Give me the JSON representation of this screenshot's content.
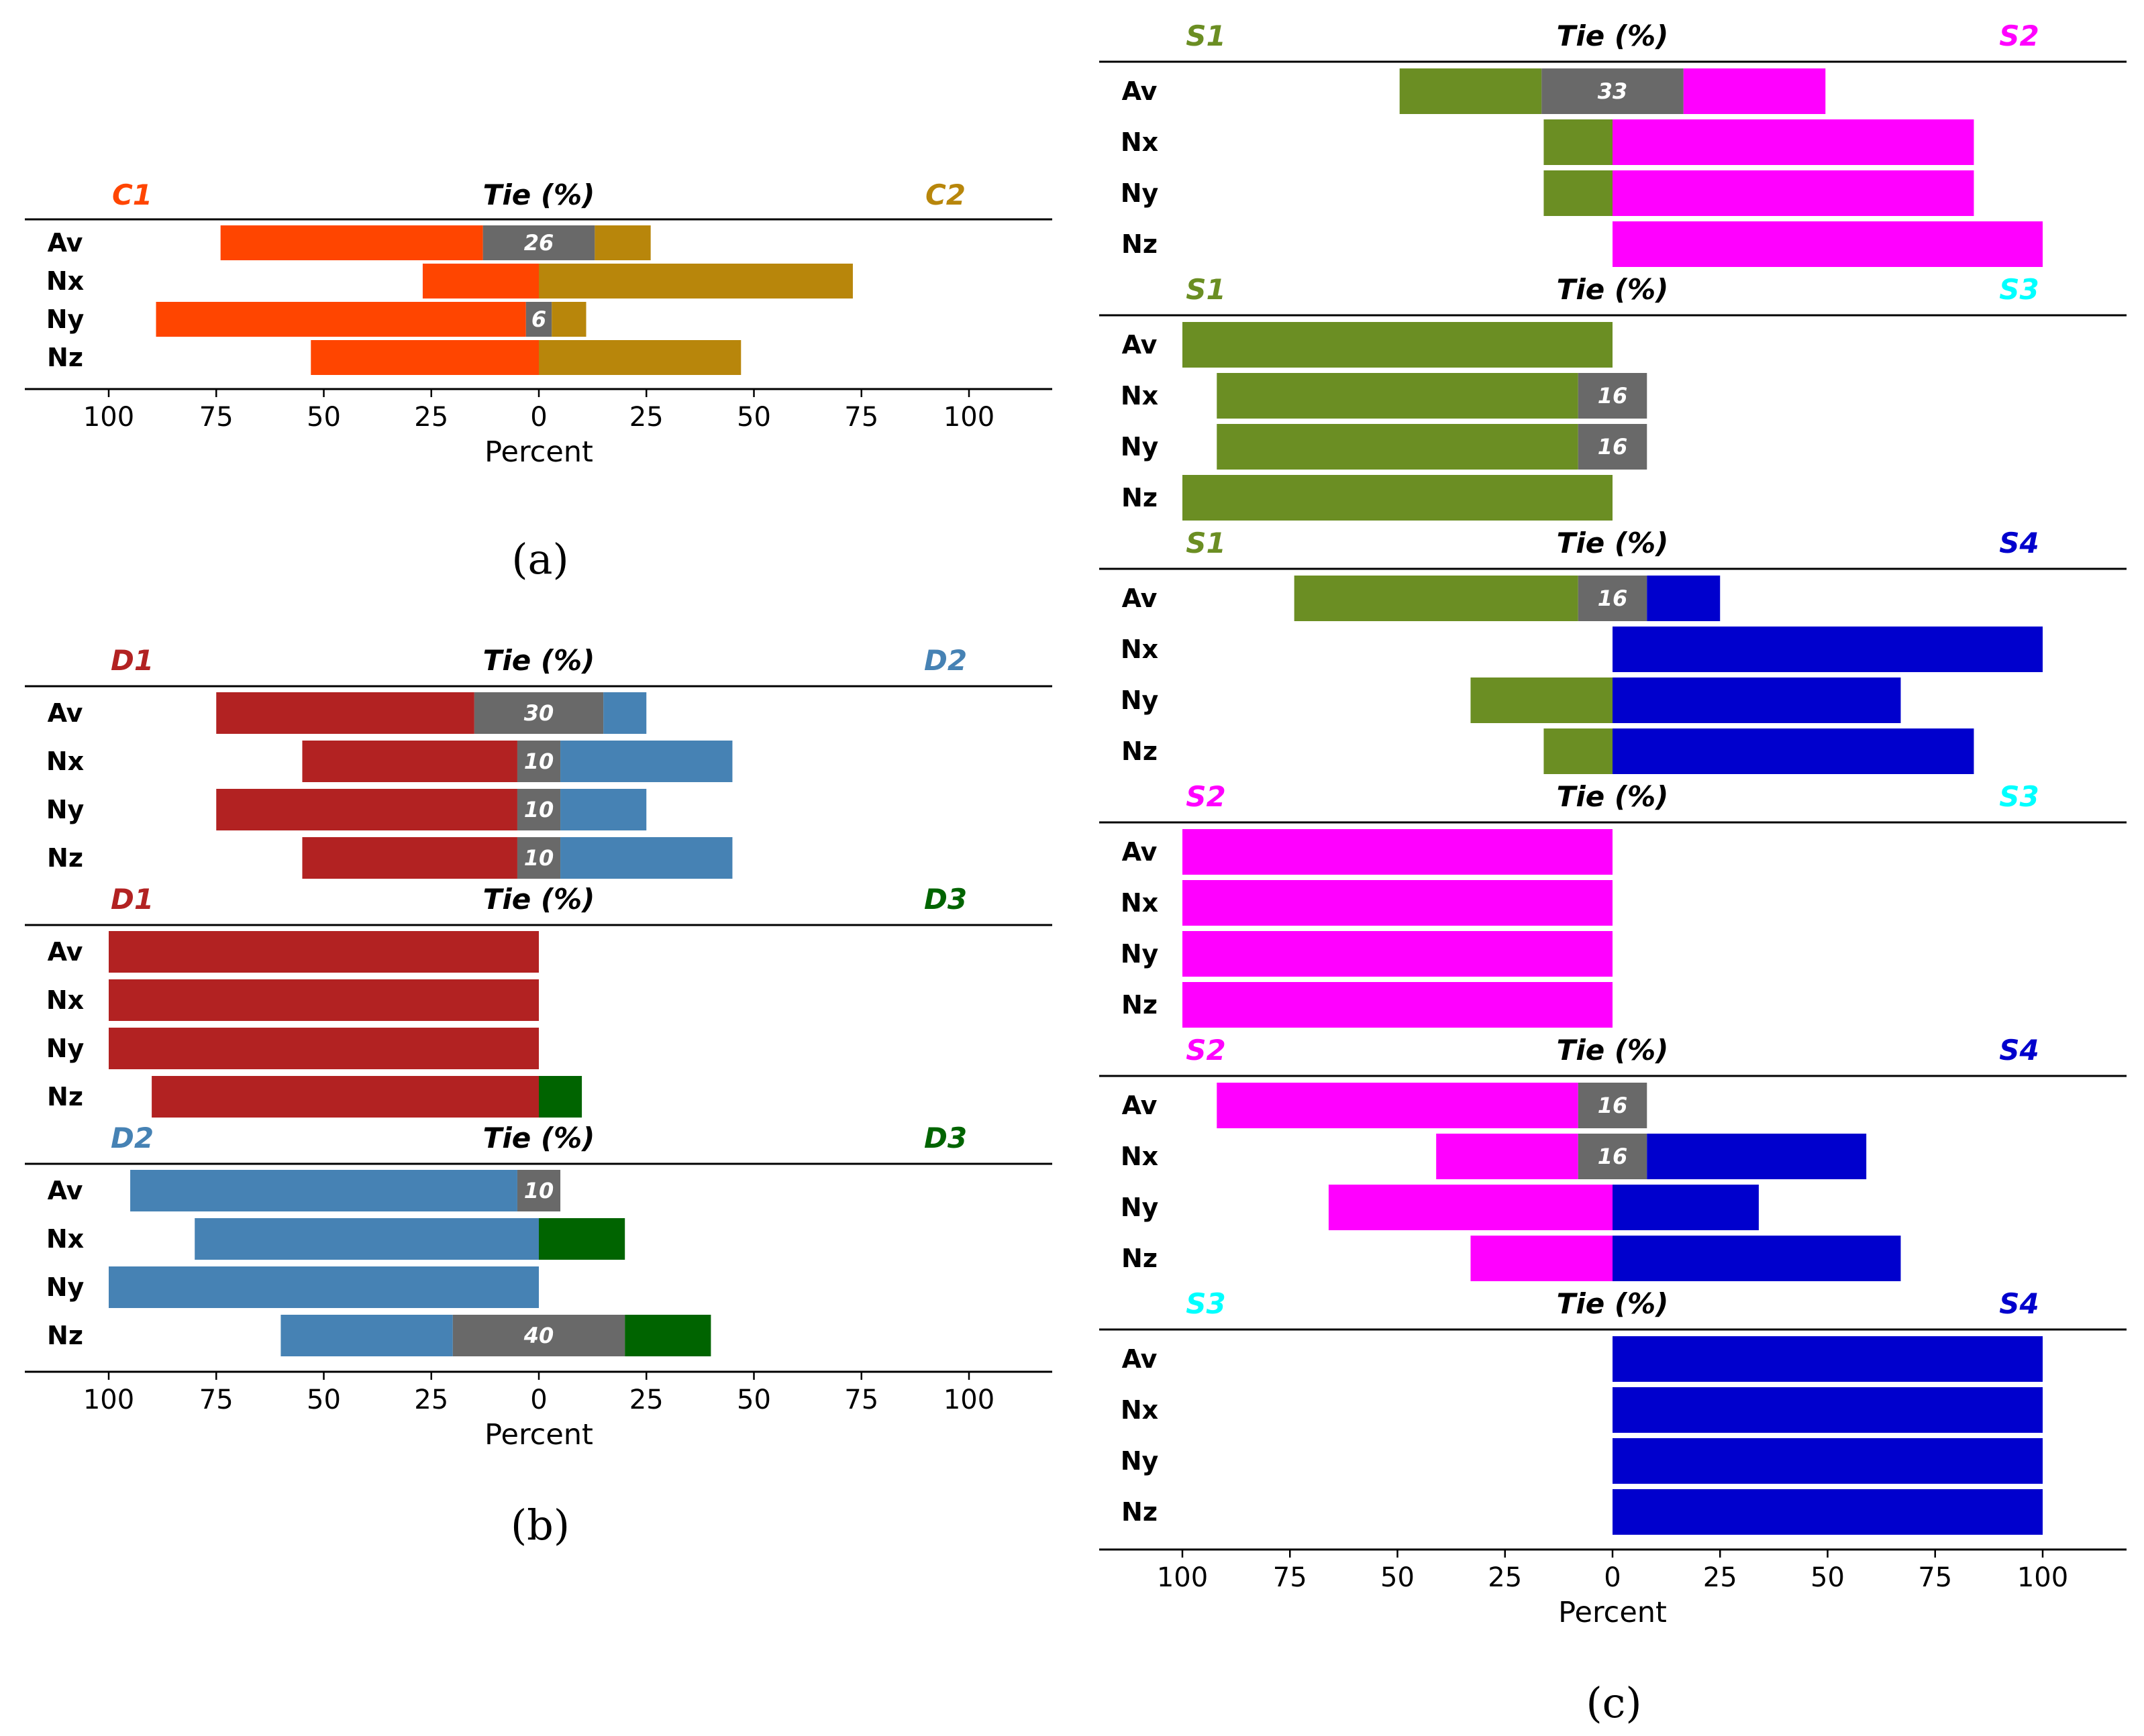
{
  "figure": {
    "panel_letters": [
      "(a)",
      "(b)",
      "(c)"
    ]
  },
  "chart_data": [
    {
      "type": "bar",
      "panel": "(a)",
      "orientation": "horizontal-diverging",
      "xlabel": "Percent",
      "xlim": [
        -120,
        120
      ],
      "xticks": [
        -100,
        -75,
        -50,
        -25,
        0,
        25,
        50,
        75,
        100
      ],
      "xtick_labels": [
        "100",
        "75",
        "50",
        "25",
        "0",
        "25",
        "50",
        "75",
        "100"
      ],
      "rows": [
        "Av",
        "Nx",
        "Ny",
        "Nz"
      ],
      "blocks": [
        {
          "left": {
            "name": "C1",
            "color": "#ff4500"
          },
          "tie": {
            "name": "Tie (%)",
            "color": "#696969"
          },
          "right": {
            "name": "C2",
            "color": "#b8860b"
          },
          "bars": [
            {
              "row": "Av",
              "left": 61,
              "tie": 26,
              "right": 13
            },
            {
              "row": "Nx",
              "left": 27,
              "tie": 0,
              "right": 73
            },
            {
              "row": "Ny",
              "left": 86,
              "tie": 6,
              "right": 8
            },
            {
              "row": "Nz",
              "left": 53,
              "tie": 0,
              "right": 47
            }
          ]
        }
      ]
    },
    {
      "type": "bar",
      "panel": "(b)",
      "orientation": "horizontal-diverging",
      "xlabel": "Percent",
      "xlim": [
        -120,
        120
      ],
      "xticks": [
        -100,
        -75,
        -50,
        -25,
        0,
        25,
        50,
        75,
        100
      ],
      "xtick_labels": [
        "100",
        "75",
        "50",
        "25",
        "0",
        "25",
        "50",
        "75",
        "100"
      ],
      "rows": [
        "Av",
        "Nx",
        "Ny",
        "Nz"
      ],
      "blocks": [
        {
          "left": {
            "name": "D1",
            "color": "#b22222"
          },
          "tie": {
            "name": "Tie (%)",
            "color": "#696969"
          },
          "right": {
            "name": "D2",
            "color": "#4682b4"
          },
          "bars": [
            {
              "row": "Av",
              "left": 60,
              "tie": 30,
              "right": 10
            },
            {
              "row": "Nx",
              "left": 50,
              "tie": 10,
              "right": 40
            },
            {
              "row": "Ny",
              "left": 70,
              "tie": 10,
              "right": 20
            },
            {
              "row": "Nz",
              "left": 50,
              "tie": 10,
              "right": 40
            }
          ]
        },
        {
          "left": {
            "name": "D1",
            "color": "#b22222"
          },
          "tie": {
            "name": "Tie (%)",
            "color": "#696969"
          },
          "right": {
            "name": "D3",
            "color": "#006400"
          },
          "bars": [
            {
              "row": "Av",
              "left": 100,
              "tie": 0,
              "right": 0
            },
            {
              "row": "Nx",
              "left": 100,
              "tie": 0,
              "right": 0
            },
            {
              "row": "Ny",
              "left": 100,
              "tie": 0,
              "right": 0
            },
            {
              "row": "Nz",
              "left": 90,
              "tie": 0,
              "right": 10
            }
          ]
        },
        {
          "left": {
            "name": "D2",
            "color": "#4682b4"
          },
          "tie": {
            "name": "Tie (%)",
            "color": "#696969"
          },
          "right": {
            "name": "D3",
            "color": "#006400"
          },
          "bars": [
            {
              "row": "Av",
              "left": 90,
              "tie": 10,
              "right": 0
            },
            {
              "row": "Nx",
              "left": 80,
              "tie": 0,
              "right": 20
            },
            {
              "row": "Ny",
              "left": 100,
              "tie": 0,
              "right": 0
            },
            {
              "row": "Nz",
              "left": 40,
              "tie": 40,
              "right": 20
            }
          ]
        }
      ]
    },
    {
      "type": "bar",
      "panel": "(c)",
      "orientation": "horizontal-diverging",
      "xlabel": "Percent",
      "xlim": [
        -120,
        120
      ],
      "xticks": [
        -100,
        -75,
        -50,
        -25,
        0,
        25,
        50,
        75,
        100
      ],
      "xtick_labels": [
        "100",
        "75",
        "50",
        "25",
        "0",
        "25",
        "50",
        "75",
        "100"
      ],
      "rows": [
        "Av",
        "Nx",
        "Ny",
        "Nz"
      ],
      "blocks": [
        {
          "left": {
            "name": "S1",
            "color": "#6b8e23"
          },
          "tie": {
            "name": "Tie (%)",
            "color": "#696969"
          },
          "right": {
            "name": "S2",
            "color": "#ff00ff"
          },
          "bars": [
            {
              "row": "Av",
              "left": 33,
              "tie": 33,
              "right": 33
            },
            {
              "row": "Nx",
              "left": 16,
              "tie": 0,
              "right": 84
            },
            {
              "row": "Ny",
              "left": 16,
              "tie": 0,
              "right": 84
            },
            {
              "row": "Nz",
              "left": 0,
              "tie": 0,
              "right": 100
            }
          ]
        },
        {
          "left": {
            "name": "S1",
            "color": "#6b8e23"
          },
          "tie": {
            "name": "Tie (%)",
            "color": "#696969"
          },
          "right": {
            "name": "S3",
            "color": "#00ffff"
          },
          "bars": [
            {
              "row": "Av",
              "left": 100,
              "tie": 0,
              "right": 0
            },
            {
              "row": "Nx",
              "left": 84,
              "tie": 16,
              "right": 0
            },
            {
              "row": "Ny",
              "left": 84,
              "tie": 16,
              "right": 0
            },
            {
              "row": "Nz",
              "left": 100,
              "tie": 0,
              "right": 0
            }
          ]
        },
        {
          "left": {
            "name": "S1",
            "color": "#6b8e23"
          },
          "tie": {
            "name": "Tie (%)",
            "color": "#696969"
          },
          "right": {
            "name": "S4",
            "color": "#0000cd"
          },
          "bars": [
            {
              "row": "Av",
              "left": 66,
              "tie": 16,
              "right": 17
            },
            {
              "row": "Nx",
              "left": 0,
              "tie": 0,
              "right": 100
            },
            {
              "row": "Ny",
              "left": 33,
              "tie": 0,
              "right": 67
            },
            {
              "row": "Nz",
              "left": 16,
              "tie": 0,
              "right": 84
            }
          ]
        },
        {
          "left": {
            "name": "S2",
            "color": "#ff00ff"
          },
          "tie": {
            "name": "Tie (%)",
            "color": "#696969"
          },
          "right": {
            "name": "S3",
            "color": "#00ffff"
          },
          "bars": [
            {
              "row": "Av",
              "left": 100,
              "tie": 0,
              "right": 0
            },
            {
              "row": "Nx",
              "left": 100,
              "tie": 0,
              "right": 0
            },
            {
              "row": "Ny",
              "left": 100,
              "tie": 0,
              "right": 0
            },
            {
              "row": "Nz",
              "left": 100,
              "tie": 0,
              "right": 0
            }
          ]
        },
        {
          "left": {
            "name": "S2",
            "color": "#ff00ff"
          },
          "tie": {
            "name": "Tie (%)",
            "color": "#696969"
          },
          "right": {
            "name": "S4",
            "color": "#0000cd"
          },
          "bars": [
            {
              "row": "Av",
              "left": 84,
              "tie": 16,
              "right": 0
            },
            {
              "row": "Nx",
              "left": 33,
              "tie": 16,
              "right": 51
            },
            {
              "row": "Ny",
              "left": 66,
              "tie": 0,
              "right": 34
            },
            {
              "row": "Nz",
              "left": 33,
              "tie": 0,
              "right": 67
            }
          ]
        },
        {
          "left": {
            "name": "S3",
            "color": "#00ffff"
          },
          "tie": {
            "name": "Tie (%)",
            "color": "#696969"
          },
          "right": {
            "name": "S4",
            "color": "#0000cd"
          },
          "bars": [
            {
              "row": "Av",
              "left": 0,
              "tie": 0,
              "right": 100
            },
            {
              "row": "Nx",
              "left": 0,
              "tie": 0,
              "right": 100
            },
            {
              "row": "Ny",
              "left": 0,
              "tie": 0,
              "right": 100
            },
            {
              "row": "Nz",
              "left": 0,
              "tie": 0,
              "right": 100
            }
          ]
        }
      ]
    }
  ]
}
